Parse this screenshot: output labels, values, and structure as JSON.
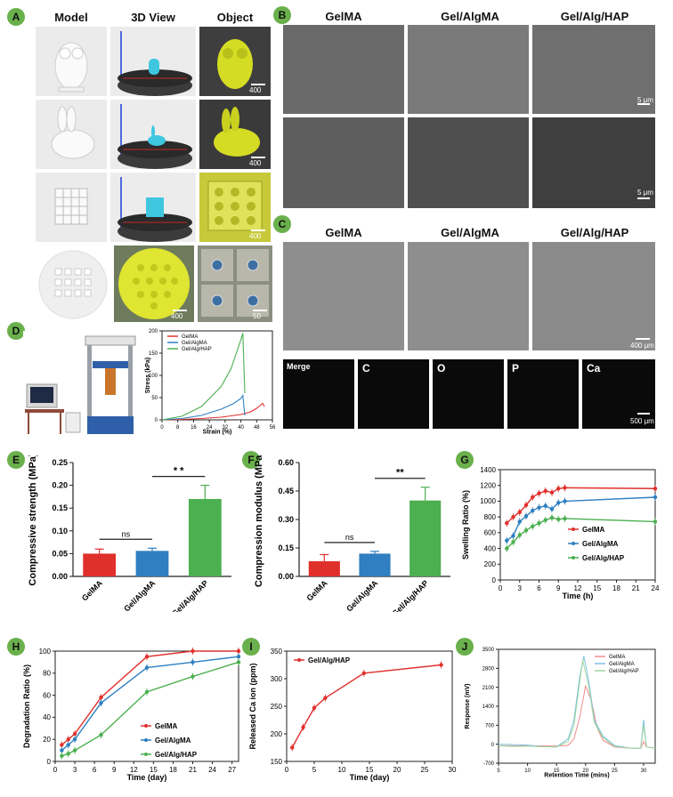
{
  "panels": {
    "A": {
      "letter": "A",
      "col_headers": [
        "Model",
        "3D View",
        "Object"
      ],
      "scalebars": [
        "400 μm",
        "400 μm",
        "400 μm",
        "400 μm",
        "50 μm"
      ]
    },
    "B": {
      "letter": "B",
      "col_headers": [
        "GelMA",
        "Gel/AlgMA",
        "Gel/Alg/HAP"
      ],
      "scalebars": [
        "5 μm",
        "5 μm"
      ]
    },
    "C": {
      "letter": "C",
      "col_headers": [
        "GelMA",
        "Gel/AlgMA",
        "Gel/Alg/HAP"
      ],
      "scalebar": "400 μm",
      "mapping_labels": [
        "Merge",
        "C",
        "O",
        "P",
        "Ca"
      ],
      "mapping_colors": [
        "#7a6a3a",
        "#a31616",
        "#1f8a1f",
        "#8a1f8a",
        "#1f8a8a"
      ],
      "mapping_scalebar": "500 μm"
    },
    "D": {
      "letter": "D"
    },
    "E": {
      "letter": "E"
    },
    "F": {
      "letter": "F"
    },
    "G": {
      "letter": "G"
    },
    "H": {
      "letter": "H"
    },
    "I": {
      "letter": "I"
    },
    "J": {
      "letter": "J"
    }
  },
  "colors": {
    "gelma": "#e0302c",
    "gelalgma": "#2f7fc1",
    "gelalghap": "#4caf50",
    "model_bg": "#e8e8e8",
    "yellow": "#d9e021"
  },
  "chart_data": [
    {
      "id": "D",
      "type": "line",
      "xlabel": "Strain (%)",
      "ylabel": "Stress (kPa)",
      "xlim": [
        0,
        56
      ],
      "ylim": [
        0,
        200
      ],
      "xticks": [
        0,
        8,
        16,
        24,
        32,
        40,
        48,
        56
      ],
      "yticks": [
        0,
        50,
        100,
        150,
        200
      ],
      "legend_position": "top-left",
      "series": [
        {
          "name": "GelMA",
          "x": [
            0,
            10,
            20,
            30,
            40,
            45,
            48,
            50,
            51,
            52
          ],
          "y": [
            0,
            1,
            3,
            6,
            12,
            18,
            26,
            33,
            37,
            30
          ]
        },
        {
          "name": "Gel/AlgMA",
          "x": [
            0,
            10,
            20,
            30,
            36,
            40,
            41,
            42
          ],
          "y": [
            0,
            3,
            10,
            24,
            36,
            48,
            55,
            10
          ]
        },
        {
          "name": "Gel/Alg/HAP",
          "x": [
            0,
            10,
            20,
            30,
            35,
            40,
            41,
            42
          ],
          "y": [
            0,
            8,
            30,
            75,
            115,
            180,
            195,
            60
          ]
        }
      ]
    },
    {
      "id": "E",
      "type": "bar",
      "ylabel": "Compressive strength (MPa)",
      "categories": [
        "GelMA",
        "Gel/AlgMA",
        "Gel/Alg/HAP"
      ],
      "values": [
        0.05,
        0.056,
        0.17
      ],
      "errors": [
        0.01,
        0.006,
        0.03
      ],
      "ylim": [
        0,
        0.25
      ],
      "yticks": [
        "0.00",
        "0.05",
        "0.10",
        "0.15",
        "0.20",
        "0.25"
      ],
      "annotations": [
        {
          "label": "ns",
          "between": [
            0,
            1
          ]
        },
        {
          "label": "* *",
          "between": [
            1,
            2
          ]
        }
      ]
    },
    {
      "id": "F",
      "type": "bar",
      "ylabel": "Compression modulus (MPa)",
      "categories": [
        "GelMA",
        "Gel/AlgMA",
        "Gel/Alg/HAP"
      ],
      "values": [
        0.08,
        0.12,
        0.4
      ],
      "errors": [
        0.035,
        0.012,
        0.07
      ],
      "ylim": [
        0,
        0.6
      ],
      "yticks": [
        "0.00",
        "0.15",
        "0.30",
        "0.45",
        "0.60"
      ],
      "annotations": [
        {
          "label": "ns",
          "between": [
            0,
            1
          ]
        },
        {
          "label": "**",
          "between": [
            1,
            2
          ]
        }
      ]
    },
    {
      "id": "G",
      "type": "line",
      "xlabel": "Time (h)",
      "ylabel": "Swelling Ratio (%)",
      "xlim": [
        0,
        24
      ],
      "ylim": [
        0,
        1400
      ],
      "xticks": [
        0,
        3,
        6,
        9,
        12,
        15,
        18,
        21,
        24
      ],
      "yticks": [
        0,
        200,
        400,
        600,
        800,
        1000,
        1200,
        1400
      ],
      "legend_position": "center-right",
      "series": [
        {
          "name": "GelMA",
          "x": [
            1,
            2,
            3,
            4,
            5,
            6,
            7,
            8,
            9,
            10,
            24
          ],
          "y": [
            720,
            800,
            860,
            950,
            1050,
            1100,
            1130,
            1110,
            1160,
            1170,
            1160
          ]
        },
        {
          "name": "Gel/AlgMA",
          "x": [
            1,
            2,
            3,
            4,
            5,
            6,
            7,
            8,
            9,
            10,
            24
          ],
          "y": [
            500,
            560,
            740,
            810,
            880,
            920,
            940,
            900,
            980,
            1000,
            1050
          ]
        },
        {
          "name": "Gel/Alg/HAP",
          "x": [
            1,
            2,
            3,
            4,
            5,
            6,
            7,
            8,
            9,
            10,
            24
          ],
          "y": [
            400,
            480,
            570,
            630,
            680,
            720,
            760,
            790,
            770,
            780,
            740
          ]
        }
      ]
    },
    {
      "id": "H",
      "type": "line",
      "xlabel": "Time (day)",
      "ylabel": "Degradation Ratio (%)",
      "xlim": [
        0,
        28
      ],
      "ylim": [
        0,
        100
      ],
      "xticks": [
        0,
        3,
        6,
        9,
        12,
        15,
        18,
        21,
        24,
        27
      ],
      "yticks": [
        "0",
        "20",
        "40",
        "60",
        "80",
        "100"
      ],
      "legend_position": "bottom-right",
      "series": [
        {
          "name": "GelMA",
          "x": [
            1,
            2,
            3,
            7,
            14,
            21,
            28
          ],
          "y": [
            15,
            20,
            25,
            58,
            95,
            100,
            100
          ]
        },
        {
          "name": "Gel/AlgMA",
          "x": [
            1,
            2,
            3,
            7,
            14,
            21,
            28
          ],
          "y": [
            10,
            15,
            20,
            53,
            85,
            90,
            95
          ]
        },
        {
          "name": "Gel/Alg/HAP",
          "x": [
            1,
            2,
            3,
            7,
            14,
            21,
            28
          ],
          "y": [
            5,
            7,
            10,
            24,
            63,
            77,
            90
          ]
        }
      ]
    },
    {
      "id": "I",
      "type": "line",
      "xlabel": "Time (day)",
      "ylabel": "Released Ca ion (ppm)",
      "xlim": [
        0,
        30
      ],
      "ylim": [
        150,
        350
      ],
      "xticks": [
        0,
        5,
        10,
        15,
        20,
        25,
        30
      ],
      "yticks": [
        150,
        200,
        250,
        300,
        350
      ],
      "legend_position": "top-left",
      "series": [
        {
          "name": "Gel/Alg/HAP",
          "x": [
            1,
            3,
            5,
            7,
            14,
            28
          ],
          "y": [
            175,
            212,
            247,
            265,
            310,
            325
          ]
        }
      ]
    },
    {
      "id": "J",
      "type": "line",
      "xlabel": "Retention Time (mins)",
      "ylabel": "Response (mV)",
      "xlim": [
        5,
        32
      ],
      "ylim": [
        -700,
        3500
      ],
      "xticks": [
        5,
        10,
        15,
        20,
        25,
        30
      ],
      "yticks": [
        -700,
        0,
        700,
        1400,
        2100,
        2800,
        3500
      ],
      "legend_position": "top-right",
      "series": [
        {
          "name": "GelMA",
          "x": [
            5,
            8,
            10,
            12,
            15,
            17,
            18,
            19,
            20,
            21,
            22,
            23,
            25,
            28,
            29.5,
            30,
            30.5,
            32
          ],
          "y": [
            -50,
            -60,
            -50,
            -60,
            -70,
            -40,
            200,
            1000,
            2150,
            1600,
            600,
            150,
            -100,
            -150,
            -150,
            100,
            -100,
            -150
          ]
        },
        {
          "name": "Gel/AlgMA",
          "x": [
            5,
            8,
            10,
            12,
            15,
            17,
            18,
            19,
            19.7,
            20.5,
            21.5,
            23,
            25,
            28,
            29.5,
            30,
            30.5,
            32
          ],
          "y": [
            0,
            -20,
            -30,
            -80,
            -100,
            200,
            900,
            2500,
            3250,
            2400,
            900,
            300,
            -50,
            -150,
            -150,
            900,
            -100,
            -150
          ]
        },
        {
          "name": "Gel/Alg/HAP",
          "x": [
            5,
            8,
            10,
            12,
            15,
            17,
            18,
            19,
            19.5,
            20.5,
            21.5,
            23,
            25,
            28,
            29.5,
            30,
            30.5,
            32
          ],
          "y": [
            -60,
            -80,
            -70,
            -90,
            -100,
            100,
            700,
            2300,
            3100,
            2200,
            800,
            250,
            -80,
            -150,
            -150,
            700,
            -100,
            -150
          ]
        }
      ]
    }
  ]
}
